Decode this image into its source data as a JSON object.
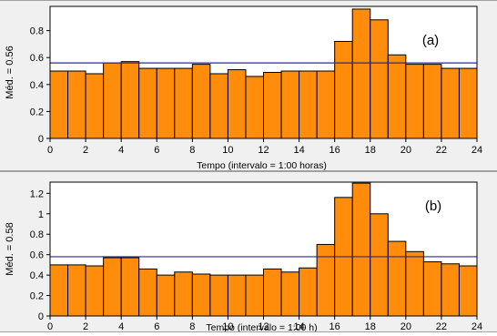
{
  "colors": {
    "panel_bg": "#f0f0f0",
    "plot_bg": "#ffffff",
    "bar_fill": "#ff8c0a",
    "bar_stroke": "#000000",
    "mean_line": "#2a2a9c",
    "axis": "#000000"
  },
  "chart_data": [
    {
      "type": "bar",
      "panel_label": "(a)",
      "ylabel": "Méd. = 0.56",
      "xlabel": "Tempo (intervalo = 1:00 horas)",
      "mean": 0.56,
      "x_bin_starts": [
        0,
        1,
        2,
        3,
        4,
        5,
        6,
        7,
        8,
        9,
        10,
        11,
        12,
        13,
        14,
        15,
        16,
        17,
        18,
        19,
        20,
        21,
        22,
        23
      ],
      "values": [
        0.5,
        0.5,
        0.48,
        0.56,
        0.57,
        0.52,
        0.52,
        0.52,
        0.55,
        0.48,
        0.51,
        0.46,
        0.49,
        0.5,
        0.5,
        0.5,
        0.72,
        0.96,
        0.88,
        0.62,
        0.55,
        0.55,
        0.52,
        0.52
      ],
      "xlim": [
        0,
        24
      ],
      "ylim": [
        0,
        0.98
      ],
      "xticks": [
        0,
        2,
        4,
        6,
        8,
        10,
        12,
        14,
        16,
        18,
        20,
        22,
        24
      ],
      "xtick_labels": [
        "0",
        "2",
        "4",
        "6",
        "8",
        "10",
        "12",
        "14",
        "16",
        "18",
        "20",
        "22",
        "24"
      ],
      "yticks": [
        0,
        0.2,
        0.4,
        0.6,
        0.8
      ],
      "ytick_labels": [
        "0",
        "0.2",
        "0.4",
        "0.6",
        "0.8"
      ],
      "grid": false
    },
    {
      "type": "bar",
      "panel_label": "(b)",
      "ylabel": "Méd. = 0.58",
      "xlabel": "Tempo (intervalo = 1:00 h)",
      "mean": 0.58,
      "x_bin_starts": [
        0,
        1,
        2,
        3,
        4,
        5,
        6,
        7,
        8,
        9,
        10,
        11,
        12,
        13,
        14,
        15,
        16,
        17,
        18,
        19,
        20,
        21,
        22,
        23
      ],
      "values": [
        0.5,
        0.5,
        0.49,
        0.57,
        0.57,
        0.46,
        0.4,
        0.43,
        0.41,
        0.4,
        0.4,
        0.4,
        0.46,
        0.43,
        0.47,
        0.7,
        1.16,
        1.3,
        1.0,
        0.73,
        0.63,
        0.53,
        0.51,
        0.49
      ],
      "xlim": [
        0,
        24
      ],
      "ylim": [
        0,
        1.31
      ],
      "xticks": [
        0,
        2,
        4,
        6,
        8,
        10,
        12,
        14,
        16,
        18,
        20,
        22,
        24
      ],
      "xtick_labels": [
        "0",
        "2",
        "4",
        "6",
        "8",
        "10",
        "12",
        "14",
        "16",
        "18",
        "20",
        "22",
        "24"
      ],
      "yticks": [
        0,
        0.2,
        0.4,
        0.6,
        0.8,
        1,
        1.2
      ],
      "ytick_labels": [
        "0",
        "0.2",
        "0.4",
        "0.6",
        "0.8",
        "1",
        "1.2"
      ],
      "grid": false
    }
  ]
}
